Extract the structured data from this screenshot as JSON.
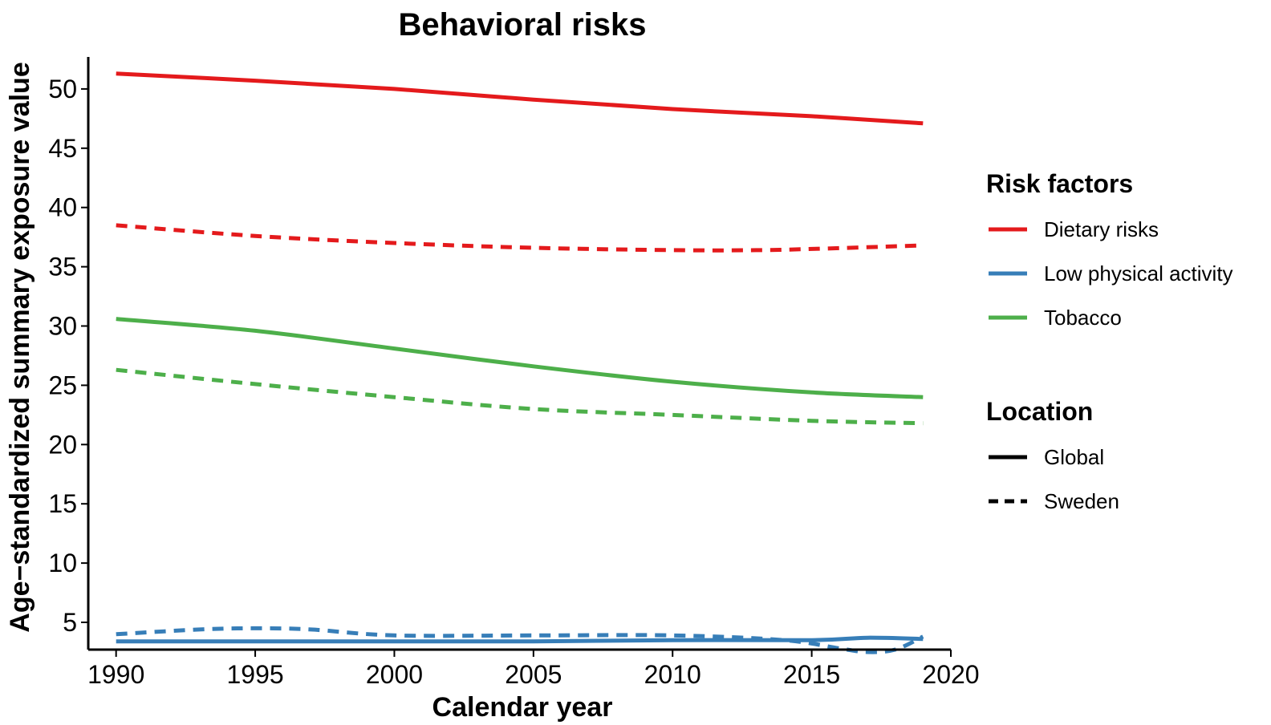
{
  "chart_data": {
    "type": "line",
    "title": "Behavioral risks",
    "xlabel": "Calendar year",
    "ylabel": "Age−standardized summary exposure value",
    "xlim": [
      1989,
      2020
    ],
    "ylim": [
      2.7,
      52.7
    ],
    "x_ticks": [
      1990,
      1995,
      2000,
      2005,
      2010,
      2015,
      2020
    ],
    "y_ticks": [
      5,
      10,
      15,
      20,
      25,
      30,
      35,
      40,
      45,
      50
    ],
    "grid": false,
    "legend_placement": "right",
    "legends": [
      {
        "title": "Risk factors",
        "entries": [
          {
            "label": "Dietary risks",
            "color": "#E41A1C",
            "style": "solid"
          },
          {
            "label": "Low physical activity",
            "color": "#377EB8",
            "style": "solid"
          },
          {
            "label": "Tobacco",
            "color": "#4DAF4A",
            "style": "solid"
          }
        ]
      },
      {
        "title": "Location",
        "entries": [
          {
            "label": "Global",
            "color": "#000000",
            "style": "solid"
          },
          {
            "label": "Sweden",
            "color": "#000000",
            "style": "dashed"
          }
        ]
      }
    ],
    "series": [
      {
        "risk": "Dietary risks",
        "location": "Global",
        "color": "#E41A1C",
        "style": "solid",
        "x": [
          1990,
          1995,
          2000,
          2005,
          2010,
          2015,
          2019
        ],
        "y": [
          51.3,
          50.7,
          50.0,
          49.1,
          48.3,
          47.7,
          47.1
        ]
      },
      {
        "risk": "Dietary risks",
        "location": "Sweden",
        "color": "#E41A1C",
        "style": "dashed",
        "x": [
          1990,
          1995,
          2000,
          2005,
          2010,
          2013,
          2015,
          2019
        ],
        "y": [
          38.5,
          37.6,
          37.0,
          36.6,
          36.4,
          36.4,
          36.5,
          36.8
        ]
      },
      {
        "risk": "Low physical activity",
        "location": "Global",
        "color": "#377EB8",
        "style": "solid",
        "x": [
          1990,
          1995,
          2000,
          2005,
          2010,
          2015,
          2017,
          2019
        ],
        "y": [
          3.4,
          3.4,
          3.4,
          3.4,
          3.5,
          3.5,
          3.7,
          3.6
        ]
      },
      {
        "risk": "Low physical activity",
        "location": "Sweden",
        "color": "#377EB8",
        "style": "dashed",
        "x": [
          1990,
          1993,
          1995,
          1997,
          2000,
          2005,
          2010,
          2014,
          2016,
          2017,
          2018,
          2019
        ],
        "y": [
          4.0,
          4.4,
          4.5,
          4.4,
          3.9,
          3.9,
          3.9,
          3.5,
          2.8,
          2.5,
          2.7,
          3.8
        ]
      },
      {
        "risk": "Tobacco",
        "location": "Global",
        "color": "#4DAF4A",
        "style": "solid",
        "x": [
          1990,
          1995,
          2000,
          2005,
          2010,
          2015,
          2019
        ],
        "y": [
          30.6,
          29.6,
          28.1,
          26.6,
          25.3,
          24.4,
          24.0
        ]
      },
      {
        "risk": "Tobacco",
        "location": "Sweden",
        "color": "#4DAF4A",
        "style": "dashed",
        "x": [
          1990,
          1995,
          2000,
          2005,
          2010,
          2015,
          2019
        ],
        "y": [
          26.3,
          25.1,
          24.0,
          23.0,
          22.5,
          22.0,
          21.8
        ]
      }
    ]
  }
}
